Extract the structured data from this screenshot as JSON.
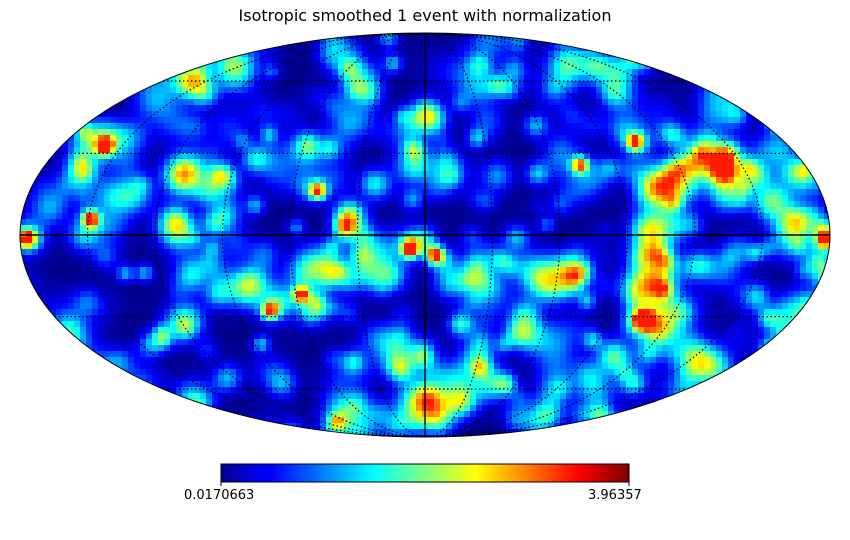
{
  "chart_data": {
    "type": "heatmap",
    "projection": "mollweide",
    "title": "Isotropic smoothed 1 event with normalization",
    "colormap": "jet",
    "colorbar": {
      "min_label": "0.0170663",
      "max_label": "3.96357",
      "min": 0.0170663,
      "max": 3.96357,
      "orientation": "horizontal",
      "placement": "bottom"
    },
    "graticule": {
      "longitude_spacing_deg": 30,
      "latitude_spacing_deg": 30,
      "style": "dotted",
      "central_lines": "solid"
    },
    "random_seed": 17
  }
}
